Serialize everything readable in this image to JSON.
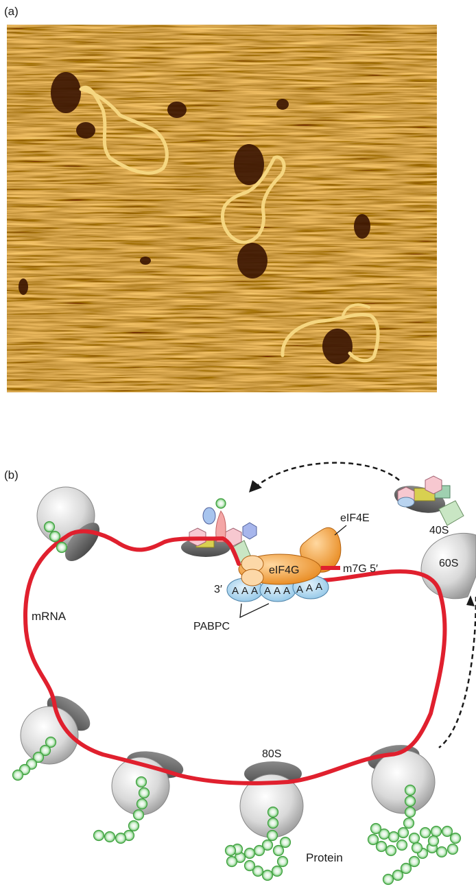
{
  "panel_a": {
    "label": "(a)"
  },
  "panel_b": {
    "label": "(b)",
    "labels": {
      "s40": "40S",
      "s60": "60S",
      "eif4e": "eIF4E",
      "eif4g": "eIF4G",
      "cap": "m7G 5′",
      "three_prime": "3′",
      "poly_a": [
        "A",
        "A",
        "A",
        "A",
        "A",
        "A",
        "A",
        "A",
        "A"
      ],
      "mrna": "mRNA",
      "pabpc": "PABPC",
      "s80": "80S",
      "protein": "Protein"
    }
  },
  "colors": {
    "mrna": "#e0202e",
    "protein_bead": "#7ccf7c",
    "eif4g": "#f2a03c",
    "pabpc": "#a9d3ee",
    "ribosome": "#d8d8d8",
    "afm_base": "#b8720e"
  }
}
